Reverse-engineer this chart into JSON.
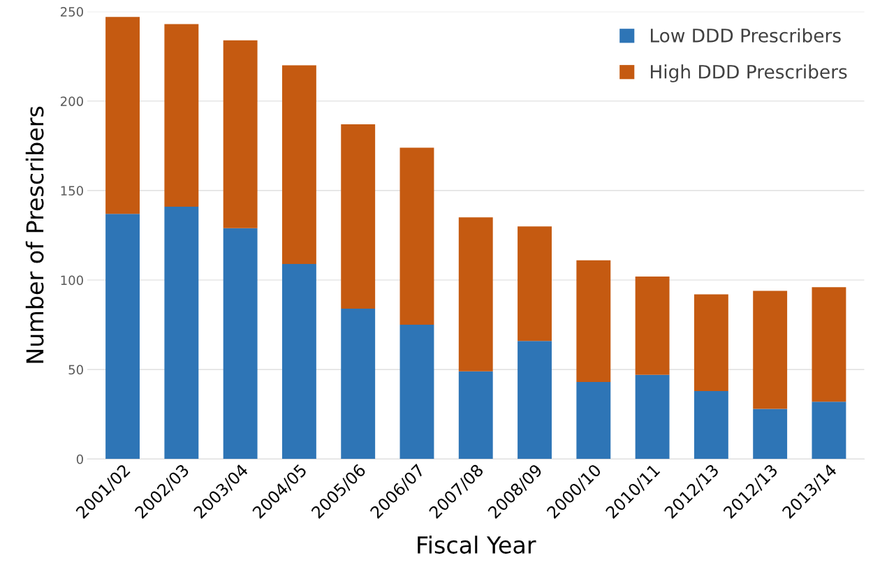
{
  "chart_data": {
    "type": "bar",
    "stacked": true,
    "xlabel": "Fiscal Year",
    "ylabel": "Number of Prescribers",
    "categories": [
      "2001/02",
      "2002/03",
      "2003/04",
      "2004/05",
      "2005/06",
      "2006/07",
      "2007/08",
      "2008/09",
      "2000/10",
      "2010/11",
      "2012/13",
      "2012/13",
      "2013/14"
    ],
    "series": [
      {
        "name": "Low DDD Prescribers",
        "color": "#2e75b6",
        "values": [
          137,
          141,
          129,
          109,
          84,
          75,
          49,
          66,
          43,
          47,
          38,
          28,
          32
        ]
      },
      {
        "name": "High DDD Prescribers",
        "color": "#c55a11",
        "values": [
          110,
          102,
          105,
          111,
          103,
          99,
          86,
          64,
          68,
          55,
          54,
          66,
          64
        ]
      }
    ],
    "ylim": [
      0,
      250
    ],
    "yticks": [
      0,
      50,
      100,
      150,
      200,
      250
    ],
    "grid": "y",
    "legend": "top right"
  }
}
